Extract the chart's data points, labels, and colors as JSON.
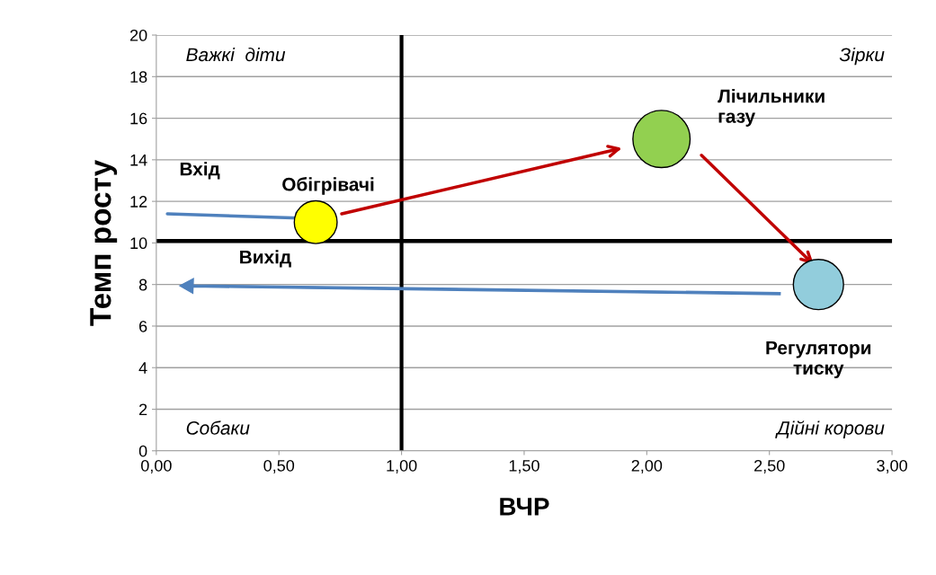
{
  "chart_data": {
    "type": "bubble",
    "xlabel": "ВЧР",
    "ylabel": "Темп росту",
    "xlim": [
      0,
      3
    ],
    "xticks": [
      {
        "value": 0,
        "label": "0,00"
      },
      {
        "value": 0.5,
        "label": "0,50"
      },
      {
        "value": 1,
        "label": "1,00"
      },
      {
        "value": 1.5,
        "label": "1,50"
      },
      {
        "value": 2,
        "label": "2,00"
      },
      {
        "value": 2.5,
        "label": "2,50"
      },
      {
        "value": 3,
        "label": "3,00"
      }
    ],
    "ylim": [
      0,
      20
    ],
    "yticks": [
      0,
      2,
      4,
      6,
      8,
      10,
      12,
      14,
      16,
      18,
      20
    ],
    "grid": "y",
    "legend": false,
    "series": [
      {
        "name": "Обігрівачі",
        "color": "#ffff00",
        "x": [
          0.65
        ],
        "values": [
          11
        ],
        "sizes": [
          0.56
        ]
      },
      {
        "name": "Лічильники\nгазу",
        "color": "#92d050",
        "x": [
          2.06
        ],
        "values": [
          15
        ],
        "sizes": [
          1
        ]
      },
      {
        "name": "Регулятори\nтиску",
        "color": "#92cddc",
        "x": [
          2.7
        ],
        "values": [
          8
        ],
        "sizes": [
          0.77
        ]
      }
    ],
    "ref_lines": [
      {
        "axis": "x",
        "value": 1,
        "color": "#000000"
      },
      {
        "axis": "y",
        "value": 10.1,
        "color": "#000000"
      }
    ],
    "annotations": [
      "Важкі  діти",
      "Зірки",
      "Собаки",
      "Дійні корови",
      "Вхід",
      "Вихід"
    ]
  }
}
